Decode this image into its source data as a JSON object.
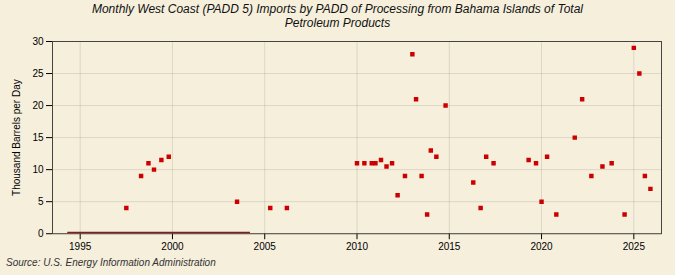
{
  "chart_data": {
    "type": "scatter",
    "title": "Monthly West Coast (PADD 5) Imports by PADD of Processing from Bahama Islands of Total\nPetroleum Products",
    "ylabel": "Thousand Barrels per Day",
    "annotations": [
      "Source: U.S. Energy Information Administration"
    ],
    "xlim": [
      1993.5,
      2026.5
    ],
    "ylim": [
      0,
      30
    ],
    "xticks": [
      1995,
      2000,
      2005,
      2010,
      2015,
      2020,
      2025
    ],
    "yticks": [
      0,
      5,
      10,
      15,
      20,
      25,
      30
    ],
    "grid": true,
    "series": [
      {
        "type": "line",
        "color": "#8b1a1a",
        "line_style": "solid",
        "x": [
          1994.3,
          2004.2
        ],
        "values": [
          0.0,
          0.0
        ]
      },
      {
        "type": "scatter",
        "color": "#cc0000",
        "marker": "square",
        "x": [
          1997.5,
          1998.3,
          1998.7,
          1999.0,
          1999.4,
          1999.8,
          2003.5,
          2005.3,
          2006.2,
          2010.0,
          2010.4,
          2010.8,
          2011.0,
          2011.3,
          2011.6,
          2011.9,
          2012.2,
          2012.6,
          2013.0,
          2013.2,
          2013.5,
          2013.8,
          2014.0,
          2014.3,
          2014.8,
          2016.3,
          2016.7,
          2017.0,
          2017.4,
          2019.3,
          2019.7,
          2020.0,
          2020.3,
          2020.8,
          2021.8,
          2022.2,
          2022.7,
          2023.3,
          2023.8,
          2024.5,
          2025.0,
          2025.3,
          2025.6,
          2025.9
        ],
        "values": [
          4.0,
          9.0,
          11.0,
          10.0,
          11.5,
          12.0,
          5.0,
          4.0,
          4.0,
          11.0,
          11.0,
          11.0,
          11.0,
          11.5,
          10.5,
          11.0,
          6.0,
          9.0,
          28.0,
          21.0,
          9.0,
          3.0,
          13.0,
          12.0,
          20.0,
          8.0,
          4.0,
          12.0,
          11.0,
          11.5,
          11.0,
          5.0,
          12.0,
          3.0,
          15.0,
          21.0,
          9.0,
          10.5,
          11.0,
          3.0,
          29.0,
          25.0,
          9.0,
          7.0
        ]
      }
    ]
  }
}
